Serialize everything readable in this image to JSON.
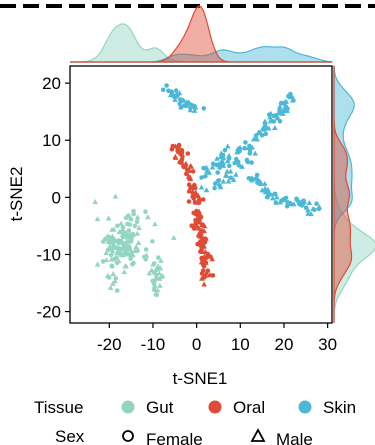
{
  "chart_data": {
    "type": "scatter",
    "title": "",
    "xlabel": "t-SNE1",
    "ylabel": "t-SNE2",
    "xlim": [
      -29,
      31
    ],
    "ylim": [
      -22,
      23
    ],
    "xticks": [
      -20,
      -10,
      0,
      10,
      20,
      30
    ],
    "yticks": [
      20,
      10,
      0,
      -10,
      -20
    ],
    "xtick_labels": [
      "-20",
      "-10",
      "0",
      "10",
      "20",
      "30"
    ],
    "ytick_labels": [
      "20",
      "10",
      "0",
      "-10",
      "-20"
    ],
    "marginal_densities": true,
    "legend_position": "bottom",
    "legend": {
      "tissue_title": "Tissue",
      "tissue": [
        {
          "name": "Gut",
          "color": "#93d5c0"
        },
        {
          "name": "Oral",
          "color": "#e04b35"
        },
        {
          "name": "Skin",
          "color": "#4bb8d6"
        }
      ],
      "sex_title": "Sex",
      "sex": [
        {
          "name": "Female",
          "shape": "circle"
        },
        {
          "name": "Male",
          "shape": "triangle"
        }
      ]
    },
    "series": [
      {
        "name": "Gut",
        "color": "#93d5c0",
        "clusters": [
          {
            "center": [
              -17,
              -8
            ],
            "spread": [
              5.5,
              4.5
            ],
            "n": 140
          },
          {
            "center": [
              -9,
              -14
            ],
            "spread": [
              1.5,
              3.5
            ],
            "n": 25
          },
          {
            "center": [
              -19,
              -15
            ],
            "spread": [
              1.2,
              2.0
            ],
            "n": 8
          }
        ]
      },
      {
        "name": "Oral",
        "color": "#e04b35",
        "path": [
          [
            -5,
            9
          ],
          [
            -2,
            5
          ],
          [
            -1,
            2
          ],
          [
            0,
            -2
          ],
          [
            1,
            -7
          ],
          [
            2,
            -12
          ],
          [
            2,
            -15
          ]
        ],
        "width": 1.0,
        "n": 140
      },
      {
        "name": "Skin",
        "color": "#4bb8d6",
        "branches": [
          {
            "path": [
              [
                1,
                4
              ],
              [
                7,
                7
              ],
              [
                12,
                9
              ],
              [
                18,
                14
              ],
              [
                22,
                18
              ]
            ],
            "width": 1.2,
            "n": 90
          },
          {
            "path": [
              [
                12,
                4
              ],
              [
                17,
                0
              ],
              [
                22,
                -1
              ],
              [
                28,
                -2
              ]
            ],
            "width": 0.9,
            "n": 60
          },
          {
            "path": [
              [
                -7,
                19
              ],
              [
                -3,
                17
              ],
              [
                1,
                15
              ]
            ],
            "width": 0.8,
            "n": 35
          },
          {
            "path": [
              [
                3,
                2
              ],
              [
                8,
                5
              ],
              [
                11,
                6
              ]
            ],
            "width": 2.2,
            "n": 30
          }
        ]
      }
    ]
  }
}
